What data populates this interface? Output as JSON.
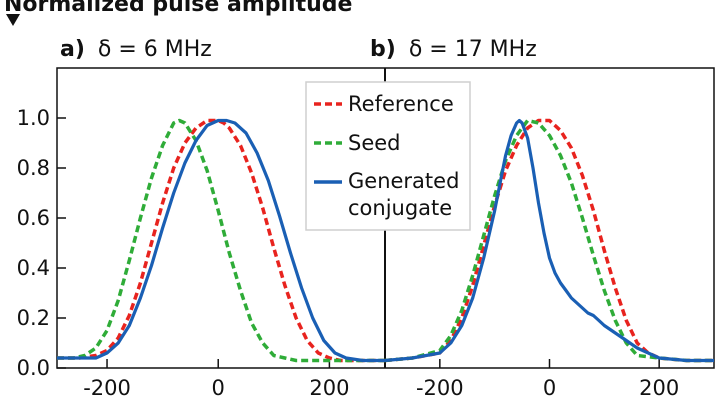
{
  "chart_data": {
    "type": "line",
    "ylabel": "Normalized pulse amplitude",
    "ylim": [
      0,
      1.2
    ],
    "yticks": [
      "0.0",
      "0.2",
      "0.4",
      "0.6",
      "0.8",
      "1.0"
    ],
    "grid": false,
    "legend": {
      "placement": "top-center",
      "entries": [
        {
          "label": "Reference",
          "color": "#e8231e",
          "style": "dashed"
        },
        {
          "label": "Seed",
          "color": "#2fac38",
          "style": "dashed"
        },
        {
          "label": "Generated",
          "label2": "conjugate",
          "color": "#1a5fb4",
          "style": "solid"
        }
      ]
    },
    "panels": [
      {
        "label": "a)",
        "title": "δ = 6 MHz",
        "xlim": [
          -290,
          300
        ],
        "xticks": [
          "-200",
          "0",
          "200"
        ],
        "series": [
          {
            "name": "Reference",
            "color": "#e8231e",
            "style": "dashed",
            "x": [
              -290,
              -250,
              -220,
              -200,
              -180,
              -160,
              -140,
              -120,
              -100,
              -80,
              -60,
              -40,
              -20,
              0,
              10,
              20,
              40,
              60,
              80,
              100,
              120,
              140,
              160,
              180,
              200,
              220,
              250,
              300
            ],
            "y": [
              0.04,
              0.04,
              0.05,
              0.07,
              0.12,
              0.21,
              0.34,
              0.5,
              0.66,
              0.8,
              0.9,
              0.96,
              0.99,
              0.99,
              0.98,
              0.96,
              0.89,
              0.78,
              0.64,
              0.48,
              0.33,
              0.2,
              0.11,
              0.06,
              0.04,
              0.03,
              0.03,
              0.03
            ]
          },
          {
            "name": "Seed",
            "color": "#2fac38",
            "style": "dashed",
            "x": [
              -290,
              -260,
              -240,
              -220,
              -200,
              -180,
              -160,
              -140,
              -120,
              -100,
              -80,
              -70,
              -60,
              -40,
              -20,
              0,
              20,
              40,
              60,
              80,
              100,
              120,
              140,
              160,
              200,
              250,
              300
            ],
            "y": [
              0.04,
              0.04,
              0.05,
              0.08,
              0.15,
              0.27,
              0.43,
              0.6,
              0.76,
              0.89,
              0.98,
              0.99,
              0.98,
              0.91,
              0.79,
              0.63,
              0.46,
              0.31,
              0.18,
              0.1,
              0.05,
              0.04,
              0.03,
              0.03,
              0.03,
              0.03,
              0.03
            ]
          },
          {
            "name": "Generated conjugate",
            "color": "#1a5fb4",
            "style": "solid",
            "x": [
              -290,
              -250,
              -220,
              -200,
              -180,
              -160,
              -140,
              -120,
              -100,
              -80,
              -60,
              -40,
              -20,
              0,
              15,
              30,
              50,
              70,
              90,
              110,
              130,
              150,
              170,
              190,
              210,
              230,
              260,
              300
            ],
            "y": [
              0.04,
              0.04,
              0.04,
              0.06,
              0.1,
              0.17,
              0.28,
              0.41,
              0.56,
              0.7,
              0.82,
              0.91,
              0.97,
              0.99,
              0.99,
              0.98,
              0.94,
              0.86,
              0.75,
              0.61,
              0.46,
              0.32,
              0.2,
              0.11,
              0.06,
              0.04,
              0.03,
              0.03
            ]
          }
        ]
      },
      {
        "label": "b)",
        "title": "δ = 17 MHz",
        "xlim": [
          -300,
          300
        ],
        "xticks": [
          "-200",
          "0",
          "200"
        ],
        "series": [
          {
            "name": "Reference",
            "color": "#e8231e",
            "style": "dashed",
            "x": [
              -300,
              -250,
              -200,
              -180,
              -160,
              -140,
              -120,
              -100,
              -80,
              -60,
              -40,
              -20,
              0,
              20,
              40,
              60,
              80,
              100,
              120,
              140,
              160,
              180,
              200,
              250,
              300
            ],
            "y": [
              0.03,
              0.04,
              0.06,
              0.11,
              0.2,
              0.33,
              0.49,
              0.65,
              0.79,
              0.89,
              0.96,
              0.99,
              0.99,
              0.95,
              0.88,
              0.77,
              0.63,
              0.47,
              0.32,
              0.19,
              0.1,
              0.06,
              0.04,
              0.03,
              0.03
            ]
          },
          {
            "name": "Seed",
            "color": "#2fac38",
            "style": "dashed",
            "x": [
              -300,
              -250,
              -200,
              -180,
              -160,
              -140,
              -120,
              -100,
              -80,
              -60,
              -40,
              -20,
              0,
              20,
              40,
              60,
              80,
              100,
              120,
              140,
              160,
              200,
              250,
              300
            ],
            "y": [
              0.03,
              0.04,
              0.07,
              0.13,
              0.23,
              0.37,
              0.53,
              0.69,
              0.83,
              0.93,
              0.99,
              0.98,
              0.93,
              0.85,
              0.74,
              0.6,
              0.45,
              0.31,
              0.19,
              0.1,
              0.05,
              0.04,
              0.03,
              0.03
            ]
          },
          {
            "name": "Generated conjugate",
            "color": "#1a5fb4",
            "style": "solid",
            "x": [
              -300,
              -250,
              -200,
              -180,
              -160,
              -140,
              -120,
              -100,
              -90,
              -80,
              -70,
              -60,
              -55,
              -50,
              -40,
              -30,
              -20,
              -10,
              0,
              10,
              20,
              30,
              40,
              50,
              60,
              70,
              80,
              90,
              100,
              120,
              140,
              160,
              180,
              200,
              250,
              300
            ],
            "y": [
              0.03,
              0.04,
              0.06,
              0.1,
              0.17,
              0.28,
              0.44,
              0.63,
              0.74,
              0.85,
              0.93,
              0.98,
              0.99,
              0.98,
              0.92,
              0.8,
              0.66,
              0.54,
              0.44,
              0.38,
              0.34,
              0.31,
              0.28,
              0.26,
              0.24,
              0.22,
              0.21,
              0.19,
              0.17,
              0.14,
              0.11,
              0.08,
              0.06,
              0.04,
              0.03,
              0.03
            ]
          }
        ]
      }
    ]
  }
}
